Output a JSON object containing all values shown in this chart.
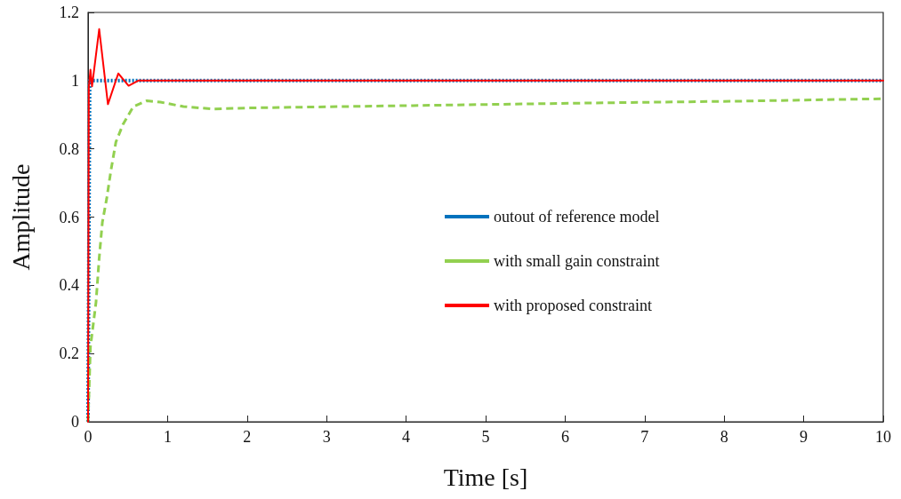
{
  "chart_data": {
    "type": "line",
    "xlabel": "Time [s]",
    "ylabel": "Amplitude",
    "xlim": [
      0,
      10
    ],
    "xticks": [
      0,
      1,
      2,
      3,
      4,
      5,
      6,
      7,
      8,
      9,
      10
    ],
    "ylim": [
      0,
      1.2
    ],
    "yticks": [
      0,
      0.2,
      0.4,
      0.6,
      0.8,
      1,
      1.2
    ],
    "grid": false,
    "legend": "right",
    "marker": "none",
    "series": [
      {
        "name": "outout of reference model",
        "color": "#0072bd",
        "line_style": "dotted",
        "x": [
          0,
          0.02,
          10
        ],
        "values": [
          0,
          1,
          1
        ]
      },
      {
        "name": "with small gain constraint",
        "color": "#92d050",
        "line_style": "dashed",
        "x": [
          0,
          0.03,
          0.1,
          0.14,
          0.18,
          0.235,
          0.29,
          0.35,
          0.44,
          0.57,
          0.74,
          0.91,
          1.2,
          1.58,
          2.0,
          4.09,
          6.15,
          8.22,
          10
        ],
        "values": [
          0,
          0.22,
          0.35,
          0.48,
          0.585,
          0.655,
          0.74,
          0.82,
          0.872,
          0.924,
          0.941,
          0.937,
          0.924,
          0.917,
          0.92,
          0.927,
          0.934,
          0.94,
          0.947
        ]
      },
      {
        "name": "with proposed constraint",
        "color": "#ff0000",
        "line_style": "solid",
        "x": [
          0,
          0.01,
          0.03,
          0.05,
          0.14,
          0.25,
          0.38,
          0.51,
          0.63,
          0.75,
          10
        ],
        "values": [
          0,
          0.98,
          1.032,
          0.983,
          1.151,
          0.931,
          1.021,
          0.985,
          1.0,
          1.0,
          1.0
        ]
      }
    ]
  }
}
